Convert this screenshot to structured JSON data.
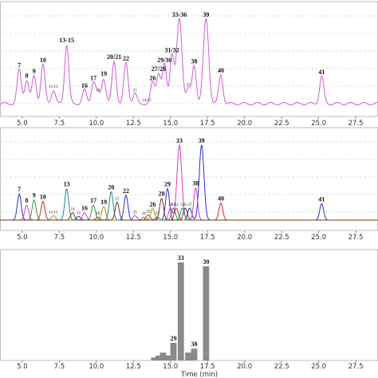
{
  "chart_data": [
    {
      "type": "line",
      "panel": "top",
      "xlim": [
        3.5,
        29
      ],
      "grid": "horizontal-dashed",
      "line_color": "#d36ad6",
      "x_ticks": [
        "5.0",
        "7.5",
        "10.0",
        "12.5",
        "15.0",
        "17.5",
        "20.0",
        "22.5",
        "25.0",
        "27.5"
      ],
      "peak_labels": [
        {
          "text": "7",
          "x": 4.8,
          "size": "large"
        },
        {
          "text": "8",
          "x": 5.3,
          "size": "large"
        },
        {
          "text": "9",
          "x": 5.8,
          "size": "large"
        },
        {
          "text": "10",
          "x": 6.4,
          "size": "large"
        },
        {
          "text": "11/12",
          "x": 7.1,
          "size": "small"
        },
        {
          "text": "13-15",
          "x": 8.0,
          "size": "large"
        },
        {
          "text": "16",
          "x": 9.2,
          "size": "large"
        },
        {
          "text": "17",
          "x": 9.8,
          "size": "large"
        },
        {
          "text": "18",
          "x": 10.1,
          "size": "small"
        },
        {
          "text": "19",
          "x": 10.5,
          "size": "large"
        },
        {
          "text": "20/21",
          "x": 11.2,
          "size": "large"
        },
        {
          "text": "22",
          "x": 12.0,
          "size": "large"
        },
        {
          "text": "23",
          "x": 12.6,
          "size": "small"
        },
        {
          "text": "24/25",
          "x": 13.4,
          "size": "small"
        },
        {
          "text": "26",
          "x": 13.8,
          "size": "large"
        },
        {
          "text": "27/28",
          "x": 14.2,
          "size": "large"
        },
        {
          "text": "29/30",
          "x": 14.6,
          "size": "large"
        },
        {
          "text": "31/32",
          "x": 15.1,
          "size": "large"
        },
        {
          "text": "33-36",
          "x": 15.6,
          "size": "large"
        },
        {
          "text": "37",
          "x": 16.2,
          "size": "small"
        },
        {
          "text": "38",
          "x": 16.6,
          "size": "large"
        },
        {
          "text": "39",
          "x": 17.4,
          "size": "large"
        },
        {
          "text": "40",
          "x": 18.4,
          "size": "large"
        },
        {
          "text": "41",
          "x": 25.2,
          "size": "large"
        }
      ]
    },
    {
      "type": "line",
      "panel": "middle",
      "xlim": [
        3.5,
        29
      ],
      "grid": "horizontal-dashed",
      "series_colors": [
        "#2b2bd6",
        "#d33bd1",
        "#2e9e2e",
        "#d42a2a",
        "#9a9a1a",
        "#1a8a8a",
        "#6a3a1a"
      ],
      "x_ticks": [
        "5.0",
        "7.5",
        "10.0",
        "12.5",
        "15.0",
        "17.5",
        "20.0",
        "22.5",
        "25.0",
        "27.5"
      ],
      "peak_labels": [
        {
          "text": "7",
          "x": 4.8,
          "size": "large"
        },
        {
          "text": "8",
          "x": 5.3,
          "size": "large"
        },
        {
          "text": "9",
          "x": 5.8,
          "size": "large"
        },
        {
          "text": "10",
          "x": 6.4,
          "size": "large"
        },
        {
          "text": "11/12",
          "x": 7.1,
          "size": "small"
        },
        {
          "text": "13",
          "x": 8.0,
          "size": "large"
        },
        {
          "text": "14",
          "x": 8.4,
          "size": "small"
        },
        {
          "text": "15",
          "x": 8.8,
          "size": "small"
        },
        {
          "text": "16",
          "x": 9.2,
          "size": "large"
        },
        {
          "text": "17",
          "x": 9.8,
          "size": "large"
        },
        {
          "text": "18",
          "x": 10.1,
          "size": "small"
        },
        {
          "text": "19",
          "x": 10.5,
          "size": "large"
        },
        {
          "text": "20",
          "x": 11.0,
          "size": "large"
        },
        {
          "text": "21",
          "x": 11.4,
          "size": "small"
        },
        {
          "text": "22",
          "x": 12.0,
          "size": "large"
        },
        {
          "text": "23",
          "x": 12.6,
          "size": "small"
        },
        {
          "text": "24",
          "x": 13.2,
          "size": "small"
        },
        {
          "text": "25",
          "x": 13.5,
          "size": "small"
        },
        {
          "text": "26",
          "x": 13.8,
          "size": "large"
        },
        {
          "text": "27",
          "x": 14.1,
          "size": "small"
        },
        {
          "text": "28",
          "x": 14.4,
          "size": "large"
        },
        {
          "text": "29",
          "x": 14.8,
          "size": "large"
        },
        {
          "text": "30",
          "x": 15.0,
          "size": "small"
        },
        {
          "text": "31",
          "x": 15.2,
          "size": "small"
        },
        {
          "text": "32",
          "x": 15.4,
          "size": "small"
        },
        {
          "text": "33",
          "x": 15.6,
          "size": "large"
        },
        {
          "text": "34",
          "x": 15.8,
          "size": "small"
        },
        {
          "text": "35",
          "x": 16.0,
          "size": "small"
        },
        {
          "text": "37",
          "x": 16.3,
          "size": "small"
        },
        {
          "text": "38",
          "x": 16.7,
          "size": "large"
        },
        {
          "text": "39",
          "x": 17.1,
          "size": "large"
        },
        {
          "text": "40",
          "x": 18.4,
          "size": "large"
        },
        {
          "text": "41",
          "x": 25.2,
          "size": "large"
        }
      ]
    },
    {
      "type": "bar",
      "panel": "bottom",
      "xlim": [
        3.5,
        29
      ],
      "ylim": [
        0,
        100
      ],
      "xlabel": "Time (min)",
      "bar_color": "#8a8a8a",
      "x_ticks": [
        "5.0",
        "7.5",
        "10.0",
        "12.5",
        "15.0",
        "17.5",
        "20.0",
        "22.5",
        "25.0",
        "27.5"
      ],
      "bars": [
        {
          "x": 13.9,
          "value": 3
        },
        {
          "x": 14.2,
          "value": 5
        },
        {
          "x": 14.5,
          "value": 8
        },
        {
          "x": 14.8,
          "value": 5
        },
        {
          "x": 15.2,
          "value": 18,
          "label": "29"
        },
        {
          "x": 15.7,
          "value": 100,
          "label": "33"
        },
        {
          "x": 16.2,
          "value": 8
        },
        {
          "x": 16.6,
          "value": 12,
          "label": "38"
        },
        {
          "x": 17.4,
          "value": 96,
          "label": "39"
        }
      ]
    }
  ]
}
